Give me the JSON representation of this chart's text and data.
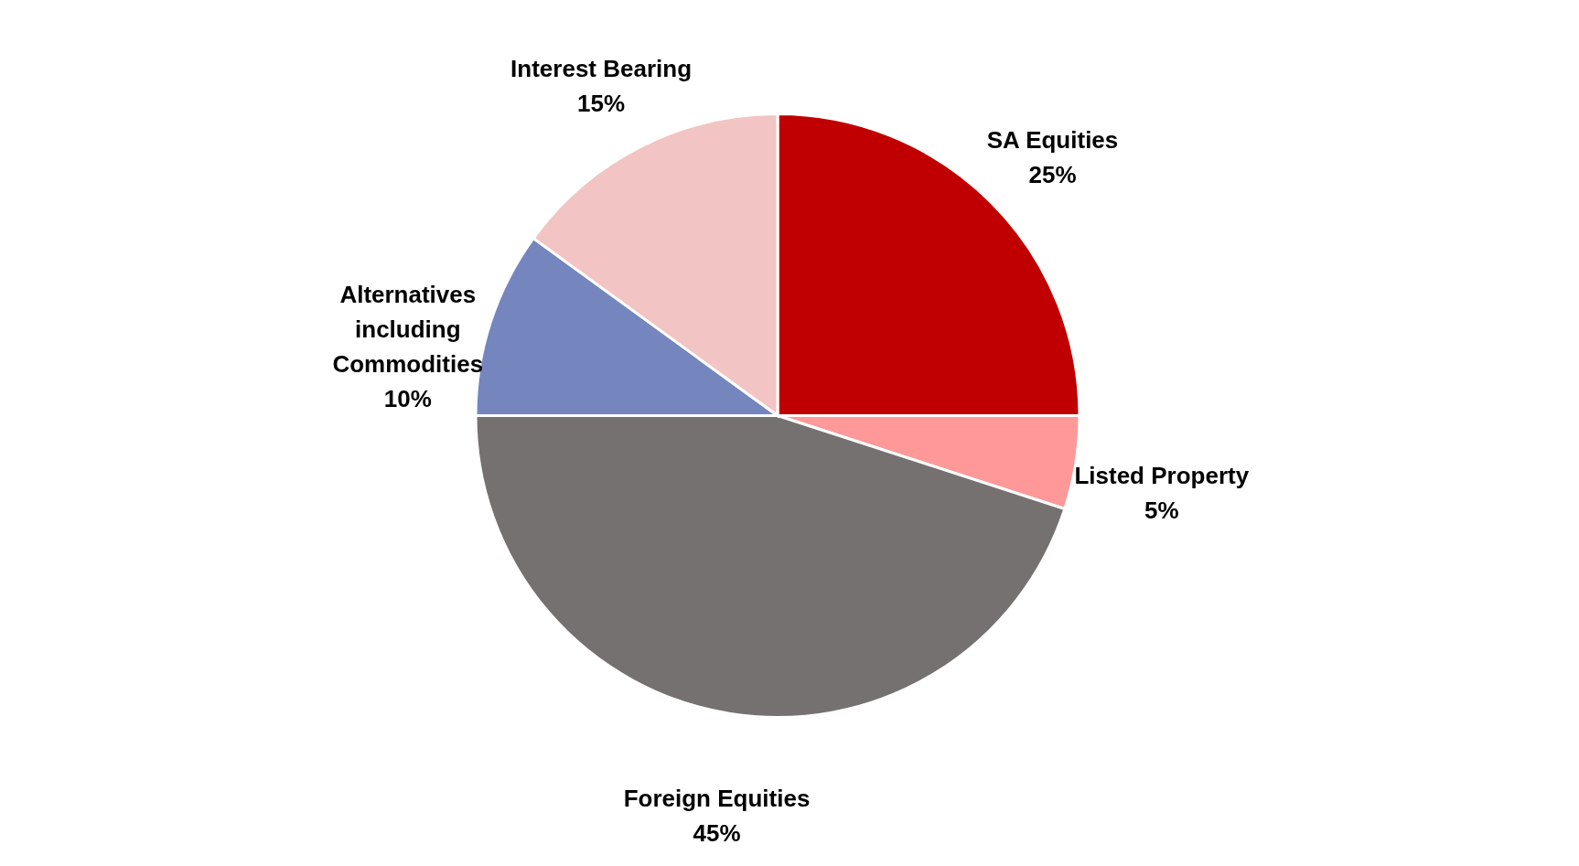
{
  "chart_data": {
    "type": "pie",
    "categories": [
      "SA Equities",
      "Listed Property",
      "Foreign Equities",
      "Alternatives including Commodities",
      "Interest Bearing"
    ],
    "values": [
      25,
      5,
      45,
      10,
      15
    ],
    "value_labels": [
      "25%",
      "5%",
      "45%",
      "10%",
      "15%"
    ],
    "colors": [
      "#c00000",
      "#ff9999",
      "#767171",
      "#7486bd",
      "#f2c4c4"
    ],
    "legend": false
  }
}
